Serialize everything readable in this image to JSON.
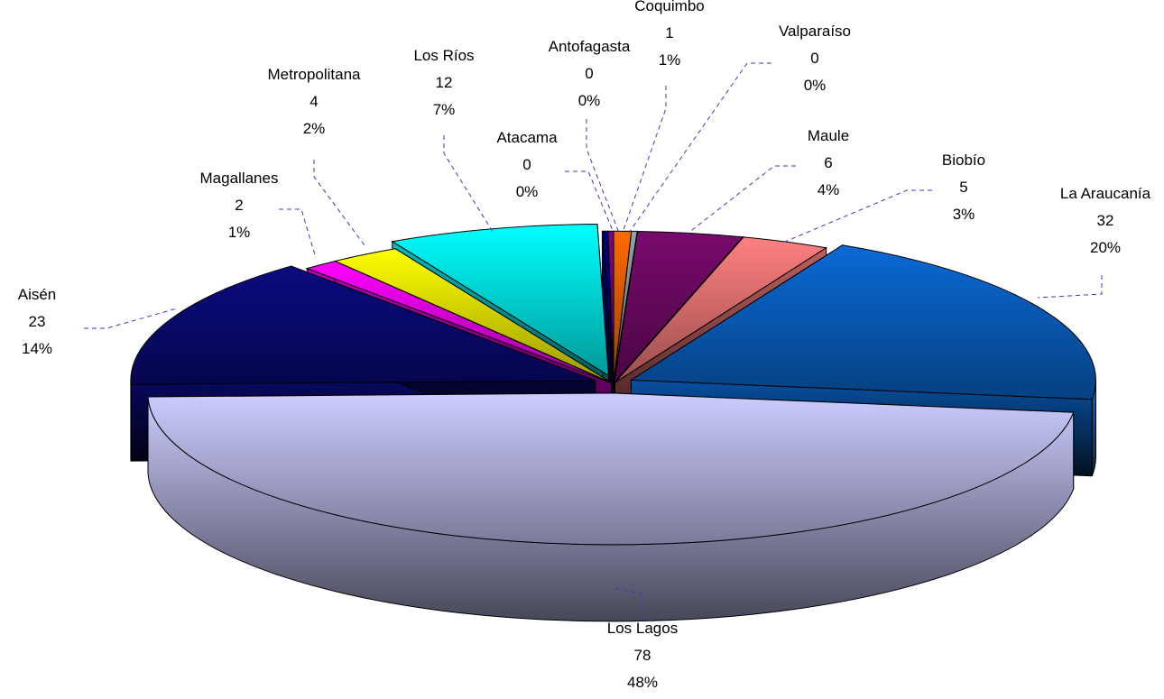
{
  "chart_data": {
    "type": "pie",
    "variant": "3d-exploded",
    "title": "",
    "slices": [
      {
        "name": "Coquimbo",
        "value": 1,
        "percent": "1%",
        "color": "#ff6a00"
      },
      {
        "name": "Valparaíso",
        "value": 0,
        "percent": "0%",
        "color": "#8fa8a8"
      },
      {
        "name": "Maule",
        "value": 6,
        "percent": "4%",
        "color": "#7a0a6e"
      },
      {
        "name": "Biobío",
        "value": 5,
        "percent": "3%",
        "color": "#ff8080"
      },
      {
        "name": "La Araucanía",
        "value": 32,
        "percent": "20%",
        "color": "#0a6ad6"
      },
      {
        "name": "Los Lagos",
        "value": 78,
        "percent": "48%",
        "color": "#ccccff"
      },
      {
        "name": "Aisén",
        "value": 23,
        "percent": "14%",
        "color": "#0a0a80"
      },
      {
        "name": "Magallanes",
        "value": 2,
        "percent": "1%",
        "color": "#ff00ff"
      },
      {
        "name": "Metropolitana",
        "value": 4,
        "percent": "2%",
        "color": "#ffff00"
      },
      {
        "name": "Los Ríos",
        "value": 12,
        "percent": "7%",
        "color": "#00ffff"
      },
      {
        "name": "Atacama",
        "value": 0,
        "percent": "0%",
        "color": "#000080"
      },
      {
        "name": "Antofagasta",
        "value": 0,
        "percent": "0%",
        "color": "#800080"
      }
    ]
  }
}
